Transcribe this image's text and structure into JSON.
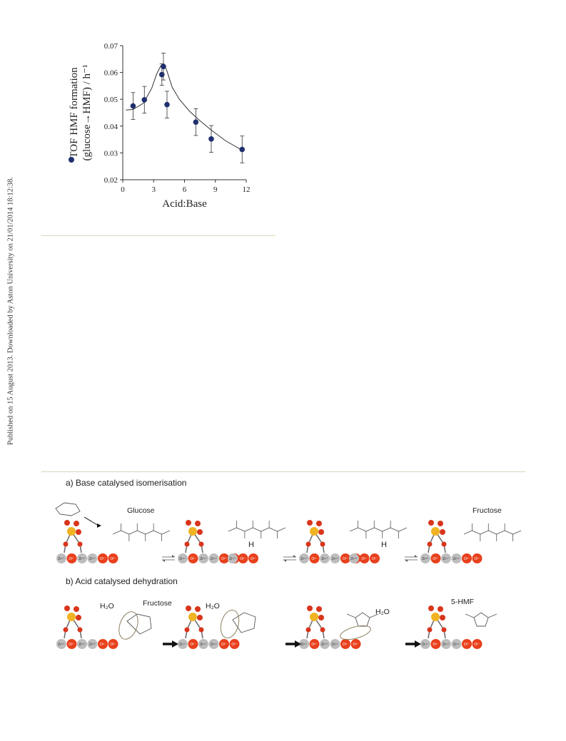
{
  "sidebar": {
    "publication_note": "Published on 15 August 2013. Downloaded by Aston University on 21/01/2014 18:12:38."
  },
  "chart_data": {
    "type": "scatter",
    "xlabel": "Acid:Base",
    "ylabel_line1": "TOF HMF formation",
    "ylabel_line2": "(glucose→HMF) / h⁻¹",
    "xlim": [
      0,
      12
    ],
    "ylim": [
      0.02,
      0.07
    ],
    "xticks": [
      "0",
      "3",
      "6",
      "9",
      "12"
    ],
    "yticks": [
      "0.02",
      "0.03",
      "0.04",
      "0.05",
      "0.06",
      "0.07"
    ],
    "grid": false,
    "marker_color": "#1f2f6e",
    "series": [
      {
        "x": [
          1.0,
          2.1,
          3.8,
          3.95,
          4.3,
          7.1,
          8.6,
          11.6
        ],
        "y": [
          0.0475,
          0.0498,
          0.0592,
          0.0622,
          0.048,
          0.0415,
          0.0352,
          0.0313
        ],
        "err": [
          0.005,
          0.005,
          0.004,
          0.005,
          0.005,
          0.005,
          0.005,
          0.005
        ]
      }
    ],
    "trend_line": {
      "x": [
        0.3,
        1.0,
        2.0,
        2.8,
        3.3,
        3.7,
        4.0,
        4.3,
        4.8,
        5.5,
        6.5,
        7.5,
        8.6,
        10.0,
        11.6
      ],
      "y": [
        0.046,
        0.0462,
        0.0485,
        0.054,
        0.0595,
        0.0625,
        0.0632,
        0.0605,
        0.0545,
        0.05,
        0.0455,
        0.042,
        0.0385,
        0.0345,
        0.031
      ]
    }
  },
  "scheme": {
    "part_a_title": "a) Base catalysed isomerisation",
    "part_b_title": "b) Acid catalysed dehydration",
    "glucose_label": "Glucose",
    "fructose_label_a": "Fructose",
    "fructose_label_b": "Fructose",
    "hmf_label": "5-HMF",
    "h2o_label": "H₂O",
    "h_label": "H",
    "zr_label": "Zr⁴⁺",
    "o_label": "O²⁻",
    "colors": {
      "zr": "#bdbdbd",
      "o": "#e8401c",
      "s": "#f0b323",
      "so": "#d9351c"
    }
  }
}
